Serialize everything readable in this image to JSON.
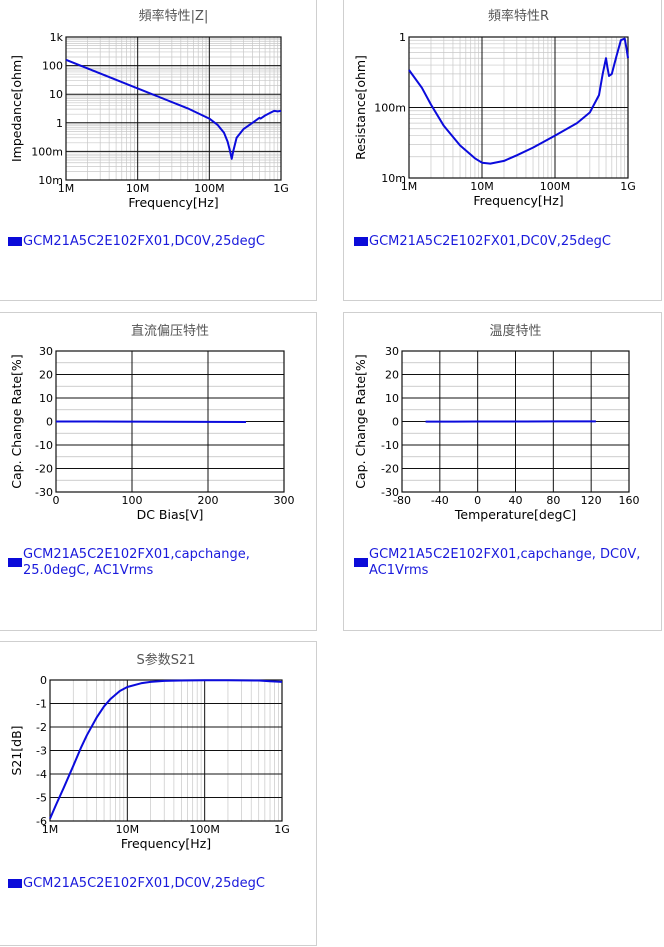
{
  "chart_data": [
    {
      "id": "z",
      "type": "line",
      "title": "頻率特性|Z|",
      "xlabel": "Frequency[Hz]",
      "ylabel": "Impedance[ohm]",
      "xscale": "log",
      "yscale": "log",
      "xlim": [
        1000000,
        1000000000
      ],
      "ylim": [
        0.01,
        1000
      ],
      "xticks": [
        [
          1000000,
          "1M"
        ],
        [
          10000000,
          "10M"
        ],
        [
          100000000,
          "100M"
        ],
        [
          1000000000,
          "1G"
        ]
      ],
      "yticks": [
        [
          0.01,
          "10m"
        ],
        [
          0.1,
          "100m"
        ],
        [
          1,
          "1"
        ],
        [
          10,
          "10"
        ],
        [
          100,
          "100"
        ],
        [
          1000,
          "1k"
        ]
      ],
      "grid": true,
      "legend": [
        "GCM21A5C2E102FX01,DC0V,25degC"
      ],
      "series": [
        {
          "name": "GCM21A5C2E102FX01,DC0V,25degC",
          "x": [
            1000000,
            2000000,
            5000000,
            10000000,
            20000000,
            50000000,
            100000000,
            130000000,
            160000000,
            180000000,
            195000000,
            205000000,
            215000000,
            240000000,
            300000000,
            400000000,
            500000000,
            520000000,
            600000000,
            700000000,
            800000000,
            900000000,
            1000000000
          ],
          "y": [
            160,
            80,
            32,
            16,
            8,
            3.2,
            1.4,
            0.85,
            0.45,
            0.22,
            0.1,
            0.055,
            0.1,
            0.3,
            0.6,
            1.0,
            1.5,
            1.4,
            1.8,
            2.2,
            2.6,
            2.5,
            2.6
          ]
        }
      ]
    },
    {
      "id": "r",
      "type": "line",
      "title": "頻率特性R",
      "xlabel": "Frequency[Hz]",
      "ylabel": "Resistance[ohm]",
      "xscale": "log",
      "yscale": "log",
      "xlim": [
        1000000,
        1000000000
      ],
      "ylim": [
        0.01,
        1
      ],
      "xticks": [
        [
          1000000,
          "1M"
        ],
        [
          10000000,
          "10M"
        ],
        [
          100000000,
          "100M"
        ],
        [
          1000000000,
          "1G"
        ]
      ],
      "yticks": [
        [
          0.01,
          "10m"
        ],
        [
          0.1,
          "100m"
        ],
        [
          1,
          "1"
        ]
      ],
      "grid": true,
      "legend": [
        "GCM21A5C2E102FX01,DC0V,25degC"
      ],
      "series": [
        {
          "name": "GCM21A5C2E102FX01,DC0V,25degC",
          "x": [
            1000000,
            1500000,
            2000000,
            3000000,
            5000000,
            8000000,
            10000000,
            13000000,
            20000000,
            30000000,
            50000000,
            100000000,
            200000000,
            300000000,
            400000000,
            450000000,
            500000000,
            520000000,
            550000000,
            600000000,
            700000000,
            800000000,
            900000000,
            950000000,
            1000000000
          ],
          "y": [
            0.34,
            0.19,
            0.11,
            0.055,
            0.029,
            0.019,
            0.0165,
            0.016,
            0.0175,
            0.021,
            0.027,
            0.04,
            0.06,
            0.085,
            0.15,
            0.3,
            0.5,
            0.38,
            0.28,
            0.3,
            0.55,
            0.9,
            0.95,
            0.7,
            0.5
          ]
        }
      ]
    },
    {
      "id": "dcbias",
      "type": "line",
      "title": "直流偏压特性",
      "xlabel": "DC Bias[V]",
      "ylabel": "Cap. Change Rate[%]",
      "xscale": "linear",
      "yscale": "linear",
      "xlim": [
        0,
        300
      ],
      "ylim": [
        -30,
        30
      ],
      "xticks": [
        [
          0,
          "0"
        ],
        [
          100,
          "100"
        ],
        [
          200,
          "200"
        ],
        [
          300,
          "300"
        ]
      ],
      "yticks": [
        [
          -30,
          "-30"
        ],
        [
          -20,
          "-20"
        ],
        [
          -10,
          "-10"
        ],
        [
          0,
          "0"
        ],
        [
          10,
          "10"
        ],
        [
          20,
          "20"
        ],
        [
          30,
          "30"
        ]
      ],
      "yminor": [
        -25,
        -15,
        -5,
        5,
        15,
        25
      ],
      "grid": true,
      "legend": [
        "GCM21A5C2E102FX01,capchange,",
        "25.0degC, AC1Vrms"
      ],
      "series": [
        {
          "name": "GCM21A5C2E102FX01,capchange, 25.0degC, AC1Vrms",
          "x": [
            0,
            50,
            100,
            150,
            200,
            250
          ],
          "y": [
            0,
            0,
            -0.05,
            -0.1,
            -0.15,
            -0.2
          ]
        }
      ]
    },
    {
      "id": "temp",
      "type": "line",
      "title": "温度特性",
      "xlabel": "Temperature[degC]",
      "ylabel": "Cap. Change Rate[%]",
      "xscale": "linear",
      "yscale": "linear",
      "xlim": [
        -80,
        160
      ],
      "ylim": [
        -30,
        30
      ],
      "xticks": [
        [
          -80,
          "-80"
        ],
        [
          -40,
          "-40"
        ],
        [
          0,
          "0"
        ],
        [
          40,
          "40"
        ],
        [
          80,
          "80"
        ],
        [
          120,
          "120"
        ],
        [
          160,
          "160"
        ]
      ],
      "yticks": [
        [
          -30,
          "-30"
        ],
        [
          -20,
          "-20"
        ],
        [
          -10,
          "-10"
        ],
        [
          0,
          "0"
        ],
        [
          10,
          "10"
        ],
        [
          20,
          "20"
        ],
        [
          30,
          "30"
        ]
      ],
      "yminor": [
        -25,
        -15,
        -5,
        5,
        15,
        25
      ],
      "grid": true,
      "legend": [
        "GCM21A5C2E102FX01,capchange, DC0V,",
        "AC1Vrms"
      ],
      "series": [
        {
          "name": "GCM21A5C2E102FX01,capchange, DC0V, AC1Vrms",
          "x": [
            -55,
            -25,
            0,
            25,
            50,
            85,
            125
          ],
          "y": [
            -0.05,
            -0.03,
            0,
            0,
            0.02,
            0.03,
            0.05
          ]
        }
      ]
    },
    {
      "id": "s21",
      "type": "line",
      "title": "S参数S21",
      "xlabel": "Frequency[Hz]",
      "ylabel": "S21[dB]",
      "xscale": "log",
      "yscale": "linear",
      "xlim": [
        1000000,
        1000000000
      ],
      "ylim": [
        -6,
        0
      ],
      "xticks": [
        [
          1000000,
          "1M"
        ],
        [
          10000000,
          "10M"
        ],
        [
          100000000,
          "100M"
        ],
        [
          1000000000,
          "1G"
        ]
      ],
      "yticks": [
        [
          -6,
          "-6"
        ],
        [
          -5,
          "-5"
        ],
        [
          -4,
          "-4"
        ],
        [
          -3,
          "-3"
        ],
        [
          -2,
          "-2"
        ],
        [
          -1,
          "-1"
        ],
        [
          0,
          "0"
        ]
      ],
      "grid": true,
      "legend": [
        "GCM21A5C2E102FX01,DC0V,25degC"
      ],
      "series": [
        {
          "name": "GCM21A5C2E102FX01,DC0V,25degC",
          "x": [
            1000000,
            1200000,
            1500000,
            2000000,
            2500000,
            3000000,
            4000000,
            5000000,
            6000000,
            8000000,
            10000000,
            15000000,
            20000000,
            30000000,
            50000000,
            100000000,
            200000000,
            500000000,
            700000000,
            1000000000
          ],
          "y": [
            -5.9,
            -5.3,
            -4.6,
            -3.65,
            -2.9,
            -2.35,
            -1.6,
            -1.12,
            -0.82,
            -0.47,
            -0.3,
            -0.14,
            -0.08,
            -0.04,
            -0.02,
            -0.01,
            -0.01,
            -0.02,
            -0.05,
            -0.08
          ]
        }
      ]
    }
  ]
}
